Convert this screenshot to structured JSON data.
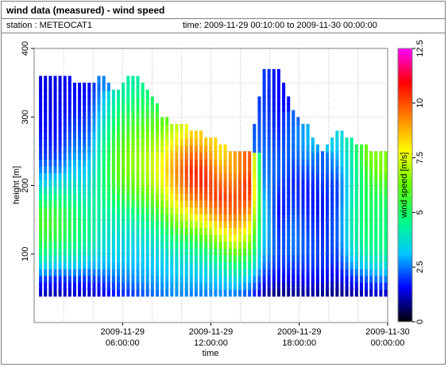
{
  "window": {
    "title": "wind data (measured) - wind speed",
    "station_text": "station : METEOCAT1",
    "time_text": "time: 2009-11-29 00:10:00 to 2009-11-30 00:00:00"
  },
  "chart_data": {
    "type": "heatmap",
    "xlabel": "time",
    "ylabel": "height [m]",
    "colorbar_label": "wind speed [m/s]",
    "xlim_hours": [
      0,
      24
    ],
    "ylim": [
      0,
      400
    ],
    "color_range": [
      0,
      12.5
    ],
    "grid": true,
    "x_ticks": [
      {
        "hour": 6,
        "line1": "2009-11-29",
        "line2": "06:00:00"
      },
      {
        "hour": 12,
        "line1": "2009-11-29",
        "line2": "12:00:00"
      },
      {
        "hour": 18,
        "line1": "2009-11-29",
        "line2": "18:00:00"
      },
      {
        "hour": 24,
        "line1": "2009-11-30",
        "line2": "00:00:00"
      }
    ],
    "y_ticks": [
      100,
      200,
      300,
      400
    ],
    "colorbar_ticks": [
      {
        "value": 0,
        "label": "0"
      },
      {
        "value": 2.5,
        "label": "2.5"
      },
      {
        "value": 5,
        "label": "5"
      },
      {
        "value": 7.5,
        "label": "7.5"
      },
      {
        "value": 10,
        "label": "10"
      },
      {
        "value": 12.5,
        "label": "12.5"
      }
    ],
    "colorscale": [
      "#000000",
      "#0000ff",
      "#00c8ff",
      "#00ff80",
      "#64ff00",
      "#ffff00",
      "#ff8000",
      "#ff0000",
      "#ff00ff"
    ],
    "height_min": 40,
    "height_step": 20,
    "time_profiles": [
      {
        "hour": 0.5,
        "top": 350,
        "speeds": [
          1.2,
          2.0,
          3.5,
          4.8,
          5.5,
          5.8,
          5.6,
          4.5,
          3.4,
          2.6,
          2.0,
          1.8,
          1.6,
          1.5,
          1.5,
          1.4
        ]
      },
      {
        "hour": 1.5,
        "top": 360,
        "speeds": [
          1.1,
          1.8,
          3.2,
          4.5,
          5.3,
          5.6,
          5.4,
          4.7,
          3.6,
          2.6,
          2.0,
          1.7,
          1.6,
          1.5,
          1.4,
          1.4
        ]
      },
      {
        "hour": 2.5,
        "top": 350,
        "speeds": [
          1.3,
          2.0,
          3.3,
          4.3,
          5.0,
          5.2,
          5.0,
          4.4,
          3.8,
          3.2,
          2.8,
          2.4,
          2.1,
          1.8,
          1.7,
          1.6
        ]
      },
      {
        "hour": 3.5,
        "top": 340,
        "speeds": [
          1.2,
          1.9,
          3.0,
          4.0,
          4.5,
          4.6,
          4.4,
          4.0,
          3.5,
          3.1,
          2.7,
          2.3,
          2.0,
          1.8,
          1.6,
          1.5
        ]
      },
      {
        "hour": 4.5,
        "top": 360,
        "speeds": [
          1.4,
          2.1,
          3.0,
          3.5,
          3.8,
          4.0,
          4.3,
          4.6,
          4.7,
          4.7,
          4.5,
          4.2,
          3.8,
          3.4,
          3.0,
          2.6
        ]
      },
      {
        "hour": 5.5,
        "top": 330,
        "speeds": [
          1.8,
          2.4,
          3.0,
          3.4,
          3.6,
          4.0,
          4.5,
          5.2,
          5.8,
          6.1,
          6.0,
          5.7,
          5.3,
          4.8,
          4.4,
          4.0
        ]
      },
      {
        "hour": 6.5,
        "top": 360,
        "speeds": [
          2.0,
          2.6,
          3.0,
          3.3,
          3.6,
          4.1,
          4.8,
          5.6,
          6.2,
          6.5,
          6.6,
          6.3,
          5.8,
          5.3,
          4.8,
          4.3
        ]
      },
      {
        "hour": 7.5,
        "top": 340,
        "speeds": [
          2.3,
          2.8,
          3.1,
          3.4,
          3.8,
          4.4,
          5.2,
          6.0,
          6.7,
          7.0,
          7.0,
          6.6,
          6.1,
          5.5,
          5.0,
          4.6
        ]
      },
      {
        "hour": 8.5,
        "top": 300,
        "speeds": [
          2.5,
          2.9,
          3.2,
          3.6,
          4.2,
          5.0,
          5.9,
          6.8,
          7.5,
          7.8,
          7.6,
          7.0,
          6.3,
          5.8
        ]
      },
      {
        "hour": 9.5,
        "top": 280,
        "speeds": [
          2.7,
          3.0,
          3.4,
          4.0,
          5.0,
          6.2,
          7.3,
          8.3,
          9.0,
          9.2,
          8.8,
          8.0,
          7.2
        ]
      },
      {
        "hour": 10.5,
        "top": 280,
        "speeds": [
          2.6,
          3.0,
          3.5,
          4.3,
          5.4,
          6.8,
          8.2,
          9.4,
          10.2,
          10.5,
          9.8,
          8.8,
          7.8
        ]
      },
      {
        "hour": 11.5,
        "top": 270,
        "speeds": [
          2.6,
          3.1,
          3.8,
          4.8,
          6.0,
          7.5,
          8.9,
          9.9,
          10.5,
          10.3,
          9.5,
          8.5
        ]
      },
      {
        "hour": 12.5,
        "top": 260,
        "speeds": [
          2.7,
          3.3,
          4.2,
          5.5,
          7.0,
          8.5,
          9.7,
          10.3,
          9.8,
          9.0,
          8.2
        ]
      },
      {
        "hour": 13.5,
        "top": 240,
        "speeds": [
          2.6,
          3.6,
          4.8,
          6.3,
          7.8,
          9.0,
          9.8,
          10.0,
          9.5,
          9.0
        ]
      },
      {
        "hour": 14.5,
        "top": 240,
        "speeds": [
          2.2,
          3.2,
          4.5,
          5.8,
          7.0,
          8.2,
          9.3,
          10.2,
          10.5,
          10.0
        ]
      },
      {
        "hour": 15.5,
        "top": 360,
        "speeds": [
          1.0,
          1.8,
          2.5,
          3.0,
          3.2,
          3.4,
          3.3,
          3.0,
          2.7,
          2.5,
          2.4,
          2.3,
          2.2,
          2.1,
          2.0,
          2.0
        ]
      },
      {
        "hour": 16.5,
        "top": 360,
        "speeds": [
          0.8,
          1.4,
          1.9,
          2.1,
          2.0,
          1.8,
          1.6,
          1.8,
          2.1,
          2.3,
          2.2,
          2.0,
          1.8,
          1.7,
          1.6,
          1.6
        ]
      },
      {
        "hour": 17.5,
        "top": 300,
        "speeds": [
          0.9,
          1.5,
          2.0,
          2.4,
          2.5,
          2.4,
          2.1,
          1.9,
          1.8,
          2.0,
          2.3,
          2.4,
          2.4,
          2.3
        ]
      },
      {
        "hour": 18.5,
        "top": 280,
        "speeds": [
          1.0,
          1.6,
          2.0,
          2.2,
          2.2,
          2.0,
          1.8,
          1.7,
          1.8,
          2.2,
          2.7,
          3.0,
          3.0
        ]
      },
      {
        "hour": 19.5,
        "top": 240,
        "speeds": [
          0.9,
          1.5,
          1.9,
          2.0,
          1.9,
          1.8,
          1.7,
          1.8,
          2.0,
          2.3
        ]
      },
      {
        "hour": 20.5,
        "top": 280,
        "speeds": [
          0.8,
          1.3,
          1.8,
          2.1,
          2.3,
          2.3,
          2.2,
          2.0,
          2.1,
          2.5,
          3.0,
          3.4,
          3.6
        ]
      },
      {
        "hour": 21.5,
        "top": 260,
        "speeds": [
          1.0,
          1.8,
          2.8,
          3.6,
          4.0,
          4.2,
          4.2,
          4.1,
          4.0,
          4.1,
          4.3,
          4.5
        ]
      },
      {
        "hour": 22.5,
        "top": 250,
        "speeds": [
          1.2,
          2.2,
          3.4,
          4.3,
          4.8,
          5.0,
          5.1,
          5.2,
          5.4,
          5.8,
          6.4
        ]
      },
      {
        "hour": 23.5,
        "top": 240,
        "speeds": [
          1.3,
          2.5,
          3.6,
          4.4,
          4.7,
          4.8,
          4.9,
          5.2,
          5.8,
          6.5
        ]
      }
    ]
  }
}
